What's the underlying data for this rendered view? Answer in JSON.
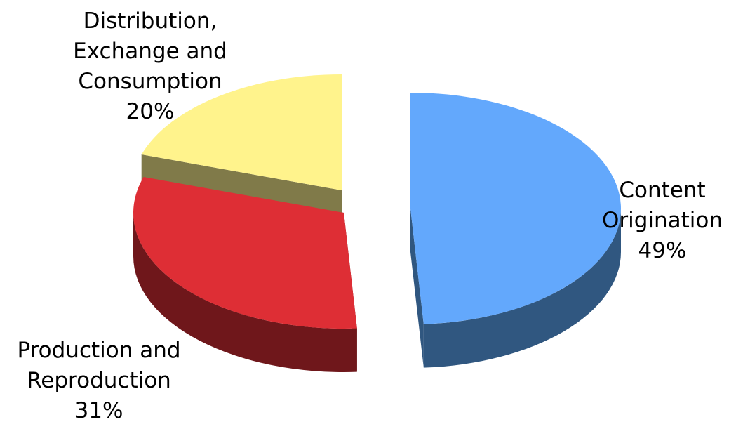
{
  "chart_data": {
    "type": "pie",
    "title": "",
    "legend": "none",
    "slices": [
      {
        "label_lines": [
          "Content",
          "Origination"
        ],
        "value": 49,
        "percent_label": "49%",
        "color": "#63a8fc",
        "side_color": "#305780"
      },
      {
        "label_lines": [
          "Production and",
          "Reproduction"
        ],
        "value": 31,
        "percent_label": "31%",
        "color": "#de2e35",
        "side_color": "#6f171b"
      },
      {
        "label_lines": [
          "Distribution,",
          "Exchange and",
          "Consumption"
        ],
        "value": 20,
        "percent_label": "20%",
        "color": "#fff38c",
        "side_color": "#807a49"
      }
    ]
  }
}
